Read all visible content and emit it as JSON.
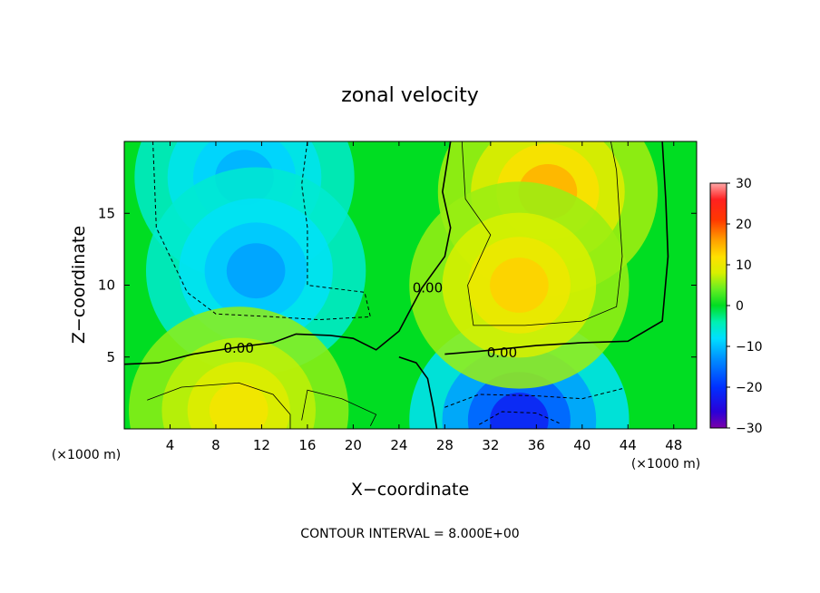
{
  "chart_data": {
    "type": "heatmap",
    "title": "zonal velocity",
    "xlabel": "X−coordinate",
    "ylabel": "Z−coordinate",
    "x_unit_left": "(×1000 m)",
    "x_unit_right": "(×1000 m)",
    "footer": "CONTOUR INTERVAL = 8.000E+00",
    "xlim": [
      0,
      50
    ],
    "ylim": [
      0,
      20
    ],
    "x_ticks": [
      4,
      8,
      12,
      16,
      20,
      24,
      28,
      32,
      36,
      40,
      44,
      48
    ],
    "y_ticks": [
      5,
      10,
      15
    ],
    "colorbar": {
      "range": [
        -30,
        30
      ],
      "ticks": [
        30,
        20,
        10,
        0,
        -10,
        -20,
        -30
      ],
      "stops": [
        {
          "v": -30,
          "color": "#7a00a8"
        },
        {
          "v": -26,
          "color": "#2a00d8"
        },
        {
          "v": -20,
          "color": "#0030ff"
        },
        {
          "v": -13,
          "color": "#0090ff"
        },
        {
          "v": -8,
          "color": "#00e0ff"
        },
        {
          "v": -4,
          "color": "#00f0b0"
        },
        {
          "v": 0,
          "color": "#00dd22"
        },
        {
          "v": 4,
          "color": "#66ee22"
        },
        {
          "v": 8,
          "color": "#d8f000"
        },
        {
          "v": 12,
          "color": "#ffe000"
        },
        {
          "v": 16,
          "color": "#ffa000"
        },
        {
          "v": 21,
          "color": "#ff3800"
        },
        {
          "v": 26,
          "color": "#ff2020"
        },
        {
          "v": 30,
          "color": "#ffa8a8"
        }
      ]
    },
    "contour_labels": [
      {
        "text": "0.00",
        "x": 10,
        "z": 5.6
      },
      {
        "text": "0.00",
        "x": 26.5,
        "z": 9.8
      },
      {
        "text": "0.00",
        "x": 33,
        "z": 5.3
      }
    ],
    "features": [
      {
        "name": "negative core upper left",
        "x": 10.5,
        "z": 17.5,
        "value": -11
      },
      {
        "name": "negative core mid left",
        "x": 11.5,
        "z": 11,
        "value": -12
      },
      {
        "name": "negative core lower",
        "x": 34.5,
        "z": 0.6,
        "value": -22
      },
      {
        "name": "positive core upper right",
        "x": 37,
        "z": 16.5,
        "value": 15
      },
      {
        "name": "positive core mid right",
        "x": 34.5,
        "z": 10,
        "value": 13
      },
      {
        "name": "positive core lower left",
        "x": 10,
        "z": 1.3,
        "value": 11
      }
    ]
  }
}
